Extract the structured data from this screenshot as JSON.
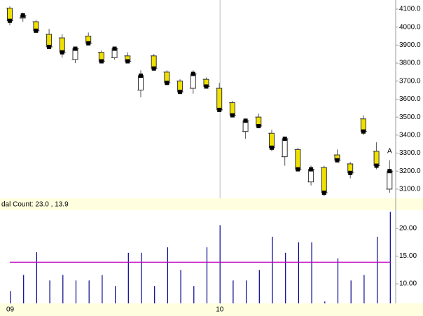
{
  "chart_data": [
    {
      "type": "candlestick",
      "categories": [
        "09",
        null,
        null,
        null,
        null,
        null,
        null,
        null,
        null,
        null,
        null,
        null,
        null,
        null,
        null,
        null,
        "10",
        null,
        null,
        null,
        null,
        null,
        null,
        null,
        null,
        null,
        null,
        null,
        null,
        null
      ],
      "open": [
        4105,
        4050,
        4030,
        3960,
        3940,
        3820,
        3950,
        3860,
        3830,
        3840,
        3650,
        3840,
        3750,
        3700,
        3660,
        3710,
        3660,
        3580,
        3420,
        3500,
        3410,
        3280,
        3320,
        3140,
        3220,
        3290,
        3240,
        3490,
        3310,
        3100
      ],
      "high": [
        4115,
        4080,
        4040,
        3990,
        3960,
        3890,
        3970,
        3870,
        3890,
        3860,
        3760,
        3850,
        3760,
        3710,
        3760,
        3720,
        3690,
        3590,
        3490,
        3520,
        3430,
        3390,
        3330,
        3230,
        3230,
        3320,
        3250,
        3510,
        3360,
        3260
      ],
      "low": [
        4010,
        4030,
        3975,
        3880,
        3830,
        3800,
        3900,
        3800,
        3820,
        3800,
        3610,
        3760,
        3680,
        3630,
        3630,
        3660,
        3530,
        3500,
        3380,
        3450,
        3310,
        3230,
        3200,
        3120,
        3060,
        3250,
        3160,
        3400,
        3210,
        3080
      ],
      "close": [
        4035,
        4065,
        3980,
        3890,
        3860,
        3880,
        3910,
        3810,
        3880,
        3810,
        3730,
        3770,
        3690,
        3640,
        3740,
        3670,
        3540,
        3510,
        3480,
        3450,
        3330,
        3380,
        3210,
        3210,
        3080,
        3260,
        3190,
        3420,
        3230,
        3200
      ],
      "up_color": "#ffffff",
      "down_color": "#f0e000",
      "ylim": [
        3049,
        4150.6
      ],
      "yticks": [
        {
          "value": 3100,
          "label": "3100.0"
        },
        {
          "value": 3200,
          "label": "3200.0"
        },
        {
          "value": 3300,
          "label": "3300.0"
        },
        {
          "value": 3400,
          "label": "3400.0"
        },
        {
          "value": 3500,
          "label": "3500.0"
        },
        {
          "value": 3600,
          "label": "3600.0"
        },
        {
          "value": 3700,
          "label": "3700.0"
        },
        {
          "value": 3800,
          "label": "3800.0"
        },
        {
          "value": 3900,
          "label": "3900.0"
        },
        {
          "value": 4000,
          "label": "4000.0"
        },
        {
          "value": 4100,
          "label": "4100.0"
        }
      ],
      "annotation": "A"
    },
    {
      "type": "bar",
      "title": "dal Count:  23.0 , 13.9",
      "values": [
        8.7,
        11.6,
        15.7,
        10.6,
        11.6,
        10.6,
        10.6,
        11.6,
        9.6,
        15.6,
        15.6,
        9.6,
        16.6,
        12.5,
        9.6,
        16.6,
        20.6,
        10.6,
        10.6,
        12.5,
        18.5,
        15.6,
        17.5,
        17.5,
        6.8,
        14.6,
        10.6,
        11.6,
        18.5,
        23.0
      ],
      "color": "#00008b",
      "reference_line": {
        "value": 13.9,
        "color": "#c000c0"
      },
      "ylim": [
        6.46,
        23.3
      ],
      "yticks": [
        {
          "value": 10,
          "label": "10.00"
        },
        {
          "value": 15,
          "label": "15.00"
        },
        {
          "value": 20,
          "label": "20.00"
        }
      ]
    }
  ]
}
